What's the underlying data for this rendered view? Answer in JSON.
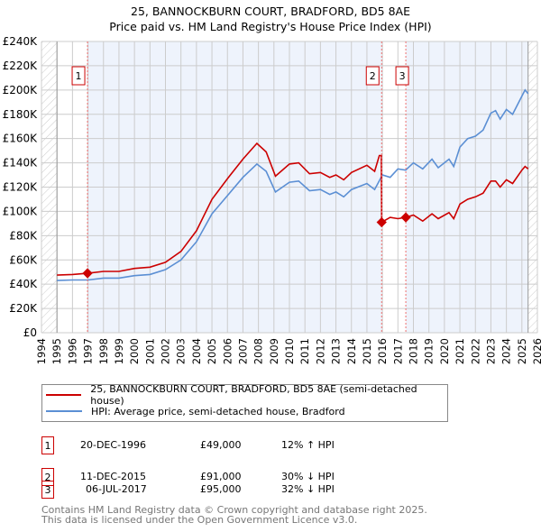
{
  "title": {
    "line1": "25, BANNOCKBURN COURT, BRADFORD, BD5 8AE",
    "line2": "Price paid vs. HM Land Registry's House Price Index (HPI)"
  },
  "chart_data": {
    "type": "line",
    "xlim": [
      1994,
      2026
    ],
    "ylim": [
      0,
      240000
    ],
    "x_ticks": [
      1994,
      1995,
      1996,
      1997,
      1998,
      1999,
      2000,
      2001,
      2002,
      2003,
      2004,
      2005,
      2006,
      2007,
      2008,
      2009,
      2010,
      2011,
      2012,
      2013,
      2014,
      2015,
      2016,
      2017,
      2018,
      2019,
      2020,
      2021,
      2022,
      2023,
      2024,
      2025,
      2026
    ],
    "y_ticks": [
      0,
      20000,
      40000,
      60000,
      80000,
      100000,
      120000,
      140000,
      160000,
      180000,
      200000,
      220000,
      240000
    ],
    "y_tick_labels": [
      "£0",
      "£20K",
      "£40K",
      "£60K",
      "£80K",
      "£100K",
      "£120K",
      "£140K",
      "£160K",
      "£180K",
      "£200K",
      "£220K",
      "£240K"
    ],
    "data_range": [
      1995,
      2025.4
    ],
    "grid": true,
    "series": [
      {
        "name": "25, BANNOCKBURN COURT, BRADFORD, BD5 8AE (semi-detached house)",
        "color": "#cc0000",
        "x": [
          1995,
          1996,
          1996.97,
          1998,
          1999,
          2000,
          2001,
          2002,
          2003,
          2004,
          2005,
          2006,
          2007,
          2007.9,
          2008.5,
          2009.1,
          2010,
          2010.6,
          2011.3,
          2012,
          2012.6,
          2013,
          2013.5,
          2014,
          2015,
          2015.5,
          2015.8,
          2015.93,
          2015.95,
          2016.5,
          2017,
          2017.51,
          2018,
          2018.6,
          2019.2,
          2019.6,
          2020.3,
          2020.6,
          2021,
          2021.5,
          2022,
          2022.5,
          2023,
          2023.3,
          2023.6,
          2024,
          2024.4,
          2025,
          2025.2,
          2025.4
        ],
        "y": [
          47500,
          48000,
          49000,
          50500,
          50500,
          53000,
          54000,
          58000,
          67000,
          84000,
          110000,
          127000,
          143000,
          156000,
          149000,
          129000,
          139000,
          140000,
          131000,
          132000,
          128000,
          130000,
          126000,
          132000,
          138000,
          133000,
          146000,
          146000,
          91000,
          95000,
          94000,
          95000,
          97000,
          92000,
          98000,
          94000,
          99000,
          94000,
          106000,
          110000,
          112000,
          115000,
          125000,
          125000,
          120000,
          126000,
          123000,
          134000,
          137000,
          135000
        ]
      },
      {
        "name": "HPI: Average price, semi-detached house, Bradford",
        "color": "#5b8fd4",
        "x": [
          1995,
          1996,
          1997,
          1998,
          1999,
          2000,
          2001,
          2002,
          2003,
          2004,
          2005,
          2006,
          2007,
          2007.9,
          2008.5,
          2009.1,
          2010,
          2010.6,
          2011.3,
          2012,
          2012.6,
          2013,
          2013.5,
          2014,
          2015,
          2015.5,
          2016,
          2016.5,
          2017,
          2017.5,
          2018,
          2018.6,
          2019.2,
          2019.6,
          2020.3,
          2020.6,
          2021,
          2021.5,
          2022,
          2022.5,
          2023,
          2023.3,
          2023.6,
          2024,
          2024.4,
          2025,
          2025.2,
          2025.4
        ],
        "y": [
          43000,
          43500,
          43500,
          45000,
          45000,
          47000,
          48000,
          52000,
          60000,
          75000,
          98000,
          113000,
          128000,
          139000,
          133000,
          116000,
          124000,
          125000,
          117000,
          118000,
          114000,
          116000,
          112000,
          118000,
          123000,
          118000,
          130000,
          128000,
          135000,
          134000,
          140000,
          135000,
          143000,
          136000,
          143000,
          137000,
          153000,
          160000,
          162000,
          167000,
          181000,
          183000,
          176000,
          184000,
          180000,
          195000,
          200000,
          197000
        ]
      }
    ],
    "sales": [
      {
        "id": "1",
        "x": 1996.97,
        "y": 49000,
        "date": "20-DEC-1996",
        "price": "£49,000",
        "hpi": "12% ↑ HPI"
      },
      {
        "id": "2",
        "x": 2015.95,
        "y": 91000,
        "date": "11-DEC-2015",
        "price": "£91,000",
        "hpi": "30% ↓ HPI"
      },
      {
        "id": "3",
        "x": 2017.51,
        "y": 95000,
        "date": "06-JUL-2017",
        "price": "£95,000",
        "hpi": "32% ↓ HPI"
      }
    ]
  },
  "footer": {
    "line1": "Contains HM Land Registry data © Crown copyright and database right 2025.",
    "line2": "This data is licensed under the Open Government Licence v3.0."
  }
}
